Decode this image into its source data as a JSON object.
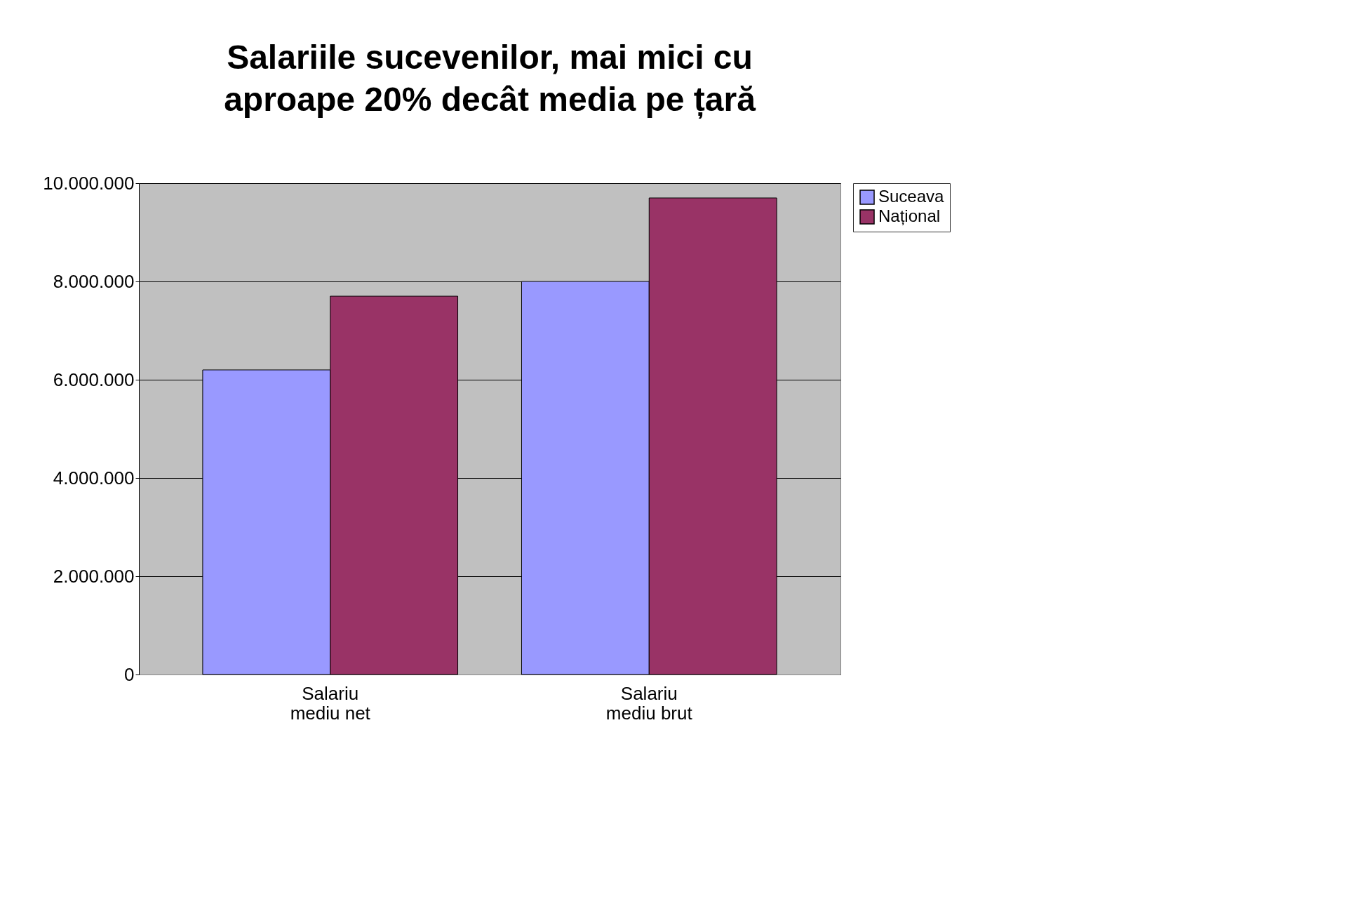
{
  "chart_data": {
    "type": "bar",
    "title": "Salariile sucevenilor, mai mici cu aproape 20% decât media pe țară",
    "categories": [
      "Salariu\nmediu net",
      "Salariu\nmediu brut"
    ],
    "series": [
      {
        "name": "Suceava",
        "color": "#9999ff",
        "values": [
          6200000,
          8000000
        ]
      },
      {
        "name": "Național",
        "color": "#993366",
        "values": [
          7700000,
          9700000
        ]
      }
    ],
    "ylim": [
      0,
      10000000
    ],
    "yticks": [
      {
        "value": 0,
        "label": "0"
      },
      {
        "value": 2000000,
        "label": "2.000.000"
      },
      {
        "value": 4000000,
        "label": "4.000.000"
      },
      {
        "value": 6000000,
        "label": "6.000.000"
      },
      {
        "value": 8000000,
        "label": "8.000.000"
      },
      {
        "value": 10000000,
        "label": "10.000.000"
      }
    ],
    "grid": "y",
    "legend": "right"
  }
}
